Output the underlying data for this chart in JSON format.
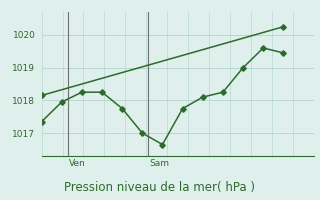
{
  "line1_x": [
    0,
    1,
    2,
    3,
    4,
    5,
    6,
    7,
    8,
    9,
    10,
    11,
    12
  ],
  "line1_y": [
    1017.35,
    1017.95,
    1018.25,
    1018.25,
    1017.75,
    1017.0,
    1016.65,
    1017.75,
    1018.1,
    1018.25,
    1019.0,
    1019.6,
    1019.45
  ],
  "line2_x": [
    0,
    12
  ],
  "line2_y": [
    1018.15,
    1020.25
  ],
  "ven_x": 1.3,
  "sam_x": 5.3,
  "yticks": [
    1017,
    1018,
    1019,
    1020
  ],
  "ylim": [
    1016.3,
    1020.7
  ],
  "xlim": [
    0,
    13.5
  ],
  "line_color": "#2d6a2d",
  "bg_color": "#dff0ec",
  "grid_color": "#b8d8d2",
  "vline_color": "#707070",
  "xlabel": "Pression niveau de la mer( hPa )",
  "tick_fontsize": 6.5,
  "label_fontsize": 8.5
}
